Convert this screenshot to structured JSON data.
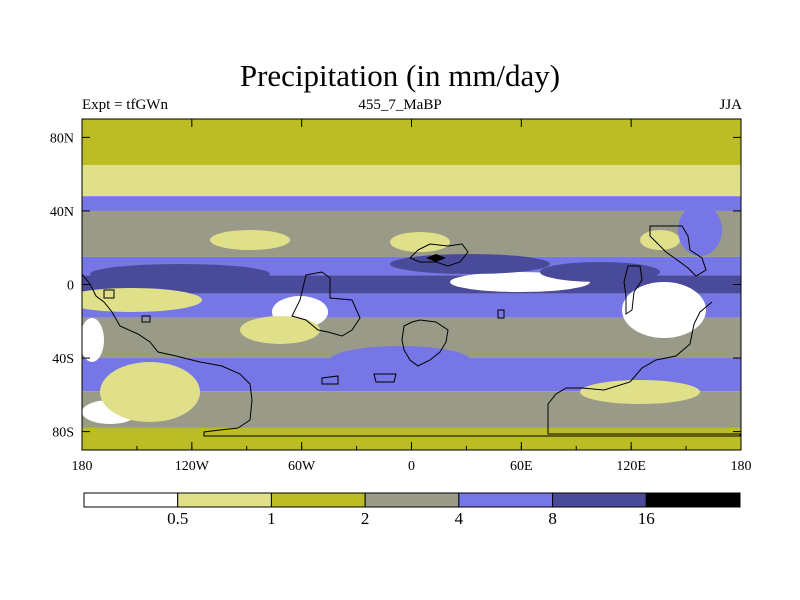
{
  "chart_data": {
    "type": "heatmap",
    "title": "Precipitation (in mm/day)",
    "subtitle_left": "Expt = tfGWn",
    "subtitle_center": "455_7_MaBP",
    "subtitle_right": "JJA",
    "x_ticks": [
      "180",
      "120W",
      "60W",
      "0",
      "60E",
      "120E",
      "180"
    ],
    "x_tick_values": [
      -180,
      -120,
      -60,
      0,
      60,
      120,
      180
    ],
    "y_ticks": [
      "80N",
      "40N",
      "0",
      "40S",
      "80S"
    ],
    "y_tick_values": [
      80,
      40,
      0,
      -40,
      -80
    ],
    "xlim": [
      -180,
      180
    ],
    "ylim": [
      -90,
      90
    ],
    "levels": [
      0.5,
      1,
      2,
      4,
      8,
      16
    ],
    "level_labels": [
      "0.5",
      "1",
      "2",
      "4",
      "8",
      "16"
    ],
    "colors": [
      "#ffffff",
      "#e0e08a",
      "#bcbc24",
      "#9a9a88",
      "#7676e6",
      "#4a4a9a",
      "#000000"
    ],
    "zonal_bands": [
      {
        "lat": [
          65,
          90
        ],
        "class": 2
      },
      {
        "lat": [
          48,
          65
        ],
        "class": 1
      },
      {
        "lat": [
          40,
          48
        ],
        "class": 4
      },
      {
        "lat": [
          15,
          40
        ],
        "class": 3
      },
      {
        "lat": [
          5,
          15
        ],
        "class": 4
      },
      {
        "lat": [
          -5,
          5
        ],
        "class": 5
      },
      {
        "lat": [
          -18,
          -5
        ],
        "class": 4
      },
      {
        "lat": [
          -40,
          -18
        ],
        "class": 3
      },
      {
        "lat": [
          -58,
          -40
        ],
        "class": 4
      },
      {
        "lat": [
          -78,
          -58
        ],
        "class": 3
      },
      {
        "lat": [
          -90,
          -78
        ],
        "class": 2
      }
    ]
  }
}
